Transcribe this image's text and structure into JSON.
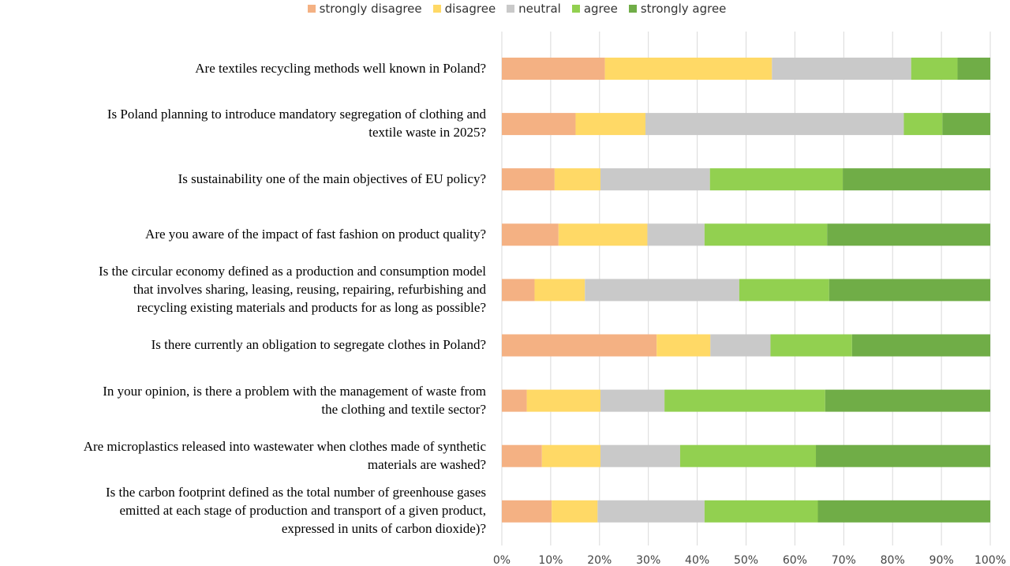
{
  "chart_data": {
    "type": "bar",
    "orientation": "horizontal",
    "stacked": "100%",
    "title": "",
    "xlabel": "",
    "ylabel": "",
    "xlim": [
      0,
      100
    ],
    "grid": true,
    "legend_position": "top",
    "x_ticks": [
      "0%",
      "10%",
      "20%",
      "30%",
      "40%",
      "50%",
      "60%",
      "70%",
      "80%",
      "90%",
      "100%"
    ],
    "categories": [
      "Are textiles recycling methods well known in Poland?",
      "Is Poland planning to introduce mandatory segregation of clothing and\ntextile waste in 2025?",
      "Is sustainability one of the main objectives of EU policy?",
      "Are you aware of the impact of fast fashion on product quality?",
      "Is the circular economy defined as a production and consumption model\nthat involves sharing, leasing, reusing, repairing, refurbishing and\nrecycling existing materials and products for as long as possible?",
      "Is there currently an obligation to segregate clothes in Poland?",
      "In your opinion, is there a problem with the management of waste from\nthe clothing and textile sector?",
      "Are microplastics released into wastewater when clothes made of synthetic\nmaterials are washed?",
      "Is the carbon footprint defined as the total number of greenhouse gases\nemitted at each stage of production and transport of a given product,\nexpressed in units of carbon dioxide)?"
    ],
    "series": [
      {
        "name": "strongly disagree",
        "color": "#F4B183",
        "values": [
          21.1,
          15.1,
          10.8,
          11.6,
          6.7,
          31.7,
          5.1,
          8.2,
          10.2
        ]
      },
      {
        "name": "disagree",
        "color": "#FFD966",
        "values": [
          34.2,
          14.3,
          9.4,
          18.2,
          10.3,
          11.0,
          15.1,
          12.0,
          9.4
        ]
      },
      {
        "name": "neutral",
        "color": "#C9C9C9",
        "values": [
          28.5,
          52.9,
          22.4,
          11.7,
          31.6,
          12.3,
          13.1,
          16.3,
          21.9
        ]
      },
      {
        "name": "agree",
        "color": "#92D050",
        "values": [
          9.5,
          7.9,
          27.2,
          25.1,
          18.4,
          16.7,
          32.9,
          27.8,
          23.2
        ]
      },
      {
        "name": "strongly agree",
        "color": "#70AD47",
        "values": [
          6.7,
          9.8,
          30.2,
          33.4,
          33.0,
          28.3,
          33.8,
          35.7,
          35.3
        ]
      }
    ]
  }
}
